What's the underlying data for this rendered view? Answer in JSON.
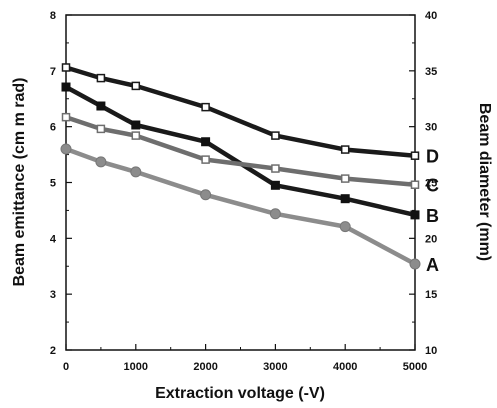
{
  "chart_data": {
    "type": "line",
    "title": "",
    "xlabel": "Extraction voltage (-V)",
    "ylabel_left": "Beam emittance (cm m rad)",
    "ylabel_right": "Beam diameter (mm)",
    "xlim": [
      0,
      5000
    ],
    "ylim_left": [
      2,
      8
    ],
    "ylim_right": [
      10,
      40
    ],
    "x_ticks": [
      "0",
      "1000",
      "2000",
      "3000",
      "4000",
      "5000"
    ],
    "y_ticks_left": [
      "2",
      "3",
      "4",
      "5",
      "6",
      "7",
      "8"
    ],
    "y_ticks_right": [
      "10",
      "15",
      "20",
      "25",
      "30",
      "35",
      "40"
    ],
    "grid": false,
    "series": [
      {
        "name": "A",
        "color": "#8c8c8c",
        "marker": "circle",
        "x": [
          0,
          500,
          1000,
          2000,
          3000,
          4000,
          5000
        ],
        "y": [
          5.6,
          5.37,
          5.19,
          4.78,
          4.44,
          4.21,
          3.54
        ]
      },
      {
        "name": "B",
        "color": "#1a1a1a",
        "marker": "square-filled",
        "x": [
          0,
          500,
          1000,
          2000,
          3000,
          4000,
          5000
        ],
        "y": [
          6.71,
          6.37,
          6.03,
          5.73,
          4.95,
          4.71,
          4.42
        ]
      },
      {
        "name": "C",
        "color": "#6e6e6e",
        "marker": "square-open",
        "x": [
          0,
          500,
          1000,
          2000,
          3000,
          4000,
          5000
        ],
        "y": [
          6.17,
          5.96,
          5.84,
          5.41,
          5.25,
          5.07,
          4.96
        ]
      },
      {
        "name": "D",
        "color": "#1a1a1a",
        "marker": "square-open",
        "x": [
          0,
          500,
          1000,
          2000,
          3000,
          4000,
          5000
        ],
        "y": [
          7.06,
          6.87,
          6.73,
          6.35,
          5.84,
          5.59,
          5.48
        ]
      }
    ]
  }
}
